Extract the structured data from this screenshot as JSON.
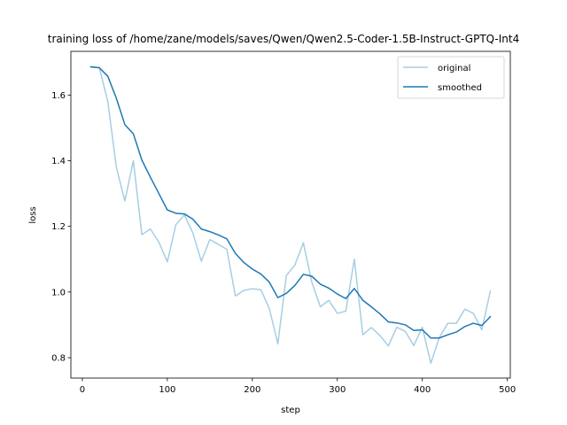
{
  "chart_data": {
    "type": "line",
    "title": "training loss of /home/zane/models/saves/Qwen/Qwen2.5-Coder-1.5B-Instruct-GPTQ-Int4",
    "xlabel": "step",
    "ylabel": "loss",
    "xlim": [
      -13.5,
      503.5
    ],
    "ylim": [
      0.738,
      1.733
    ],
    "xticks": [
      0,
      100,
      200,
      300,
      400,
      500
    ],
    "yticks": [
      0.8,
      1.0,
      1.2,
      1.4,
      1.6
    ],
    "ytick_labels": [
      "0.8",
      "1.0",
      "1.2",
      "1.4",
      "1.6"
    ],
    "legend_position": "upper right",
    "grid": false,
    "series": [
      {
        "name": "original",
        "color": "#a6cee3",
        "x": [
          10,
          20,
          30,
          40,
          50,
          60,
          70,
          80,
          90,
          100,
          110,
          120,
          130,
          140,
          150,
          160,
          170,
          180,
          190,
          200,
          210,
          220,
          230,
          240,
          250,
          260,
          270,
          280,
          290,
          300,
          310,
          320,
          330,
          340,
          350,
          360,
          370,
          380,
          390,
          400,
          410,
          420,
          430,
          440,
          450,
          460,
          470,
          480
        ],
        "y": [
          1.685,
          1.683,
          1.58,
          1.38,
          1.277,
          1.4,
          1.175,
          1.192,
          1.152,
          1.092,
          1.205,
          1.235,
          1.18,
          1.094,
          1.16,
          1.145,
          1.13,
          0.988,
          1.005,
          1.01,
          1.007,
          0.95,
          0.842,
          1.05,
          1.082,
          1.15,
          1.03,
          0.955,
          0.975,
          0.935,
          0.942,
          1.1,
          0.87,
          0.892,
          0.868,
          0.836,
          0.893,
          0.88,
          0.837,
          0.893,
          0.783,
          0.862,
          0.905,
          0.905,
          0.948,
          0.935,
          0.885,
          1.003
        ]
      },
      {
        "name": "smoothed",
        "color": "#1f78b4",
        "x": [
          10,
          20,
          30,
          40,
          50,
          60,
          70,
          80,
          90,
          100,
          110,
          120,
          130,
          140,
          150,
          160,
          170,
          180,
          190,
          200,
          210,
          220,
          230,
          240,
          250,
          260,
          270,
          280,
          290,
          300,
          310,
          320,
          330,
          340,
          350,
          360,
          370,
          380,
          390,
          400,
          410,
          420,
          430,
          440,
          450,
          460,
          470,
          480
        ],
        "y": [
          1.686,
          1.683,
          1.657,
          1.59,
          1.51,
          1.482,
          1.402,
          1.35,
          1.3,
          1.25,
          1.24,
          1.238,
          1.222,
          1.192,
          1.184,
          1.174,
          1.162,
          1.118,
          1.09,
          1.07,
          1.055,
          1.03,
          0.983,
          0.996,
          1.02,
          1.054,
          1.048,
          1.024,
          1.012,
          0.994,
          0.98,
          1.011,
          0.975,
          0.955,
          0.934,
          0.909,
          0.906,
          0.9,
          0.883,
          0.885,
          0.86,
          0.86,
          0.87,
          0.878,
          0.895,
          0.905,
          0.898,
          0.925
        ]
      }
    ]
  }
}
